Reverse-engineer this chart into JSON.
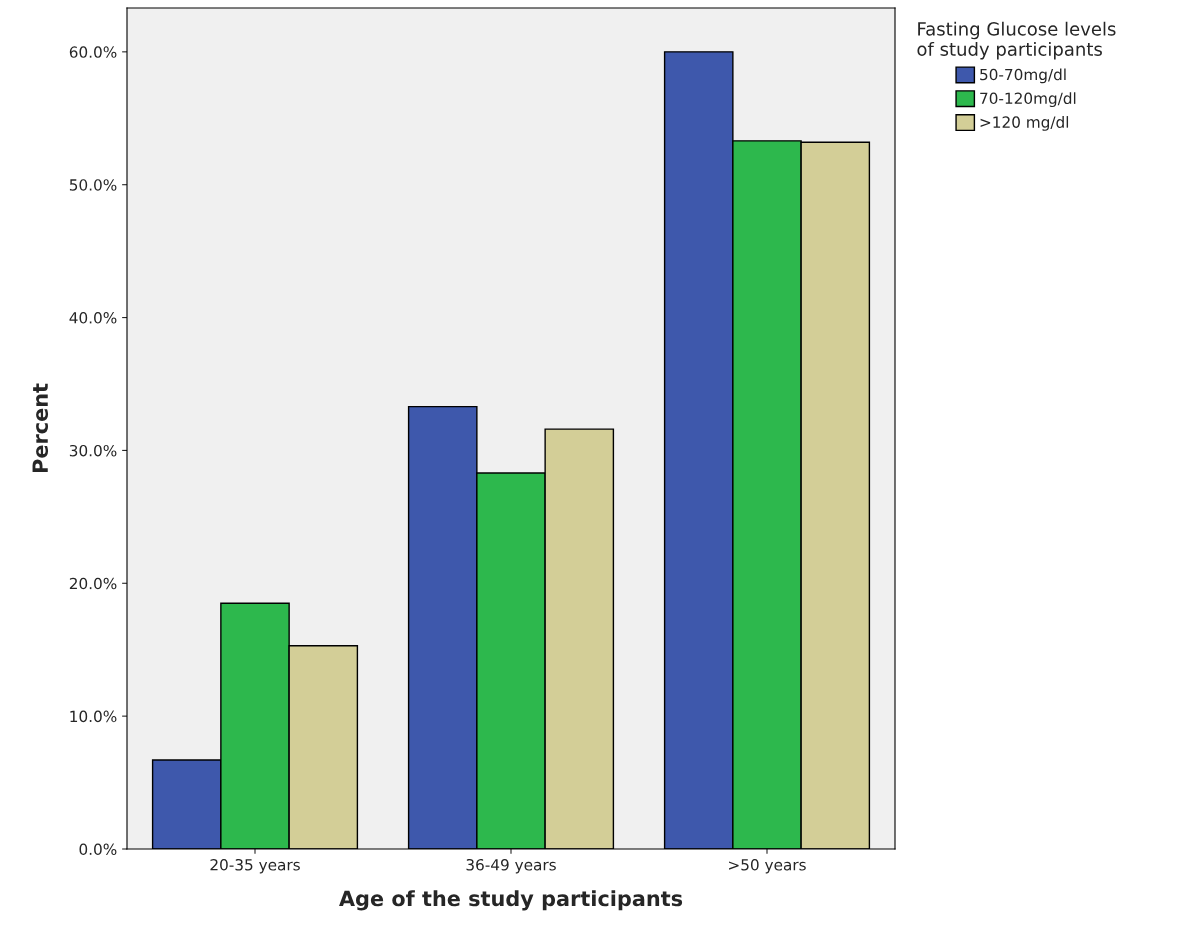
{
  "chart_data": {
    "type": "bar",
    "xlabel": "Age of the study participants",
    "ylabel": "Percent",
    "legend_title": "Fasting Glucose levels\nof study participants",
    "categories": [
      "20-35 years",
      "36-49 years",
      ">50 years"
    ],
    "series": [
      {
        "name": "50-70mg/dl",
        "color": "#3e58ac",
        "values": [
          6.7,
          33.3,
          60.0
        ]
      },
      {
        "name": "70-120mg/dl",
        "color": "#2db84d",
        "values": [
          18.5,
          28.3,
          53.3
        ]
      },
      {
        "name": ">120 mg/dl",
        "color": "#d3ce97",
        "values": [
          15.3,
          31.6,
          53.2
        ]
      }
    ],
    "ylim": [
      0,
      63.3
    ],
    "yticks": [
      {
        "value": 0,
        "label": "0.0%"
      },
      {
        "value": 10,
        "label": "10.0%"
      },
      {
        "value": 20,
        "label": "20.0%"
      },
      {
        "value": 30,
        "label": "30.0%"
      },
      {
        "value": 40,
        "label": "40.0%"
      },
      {
        "value": 50,
        "label": "50.0%"
      },
      {
        "value": 60,
        "label": "60.0%"
      }
    ],
    "grid": false,
    "legend": "top right"
  }
}
